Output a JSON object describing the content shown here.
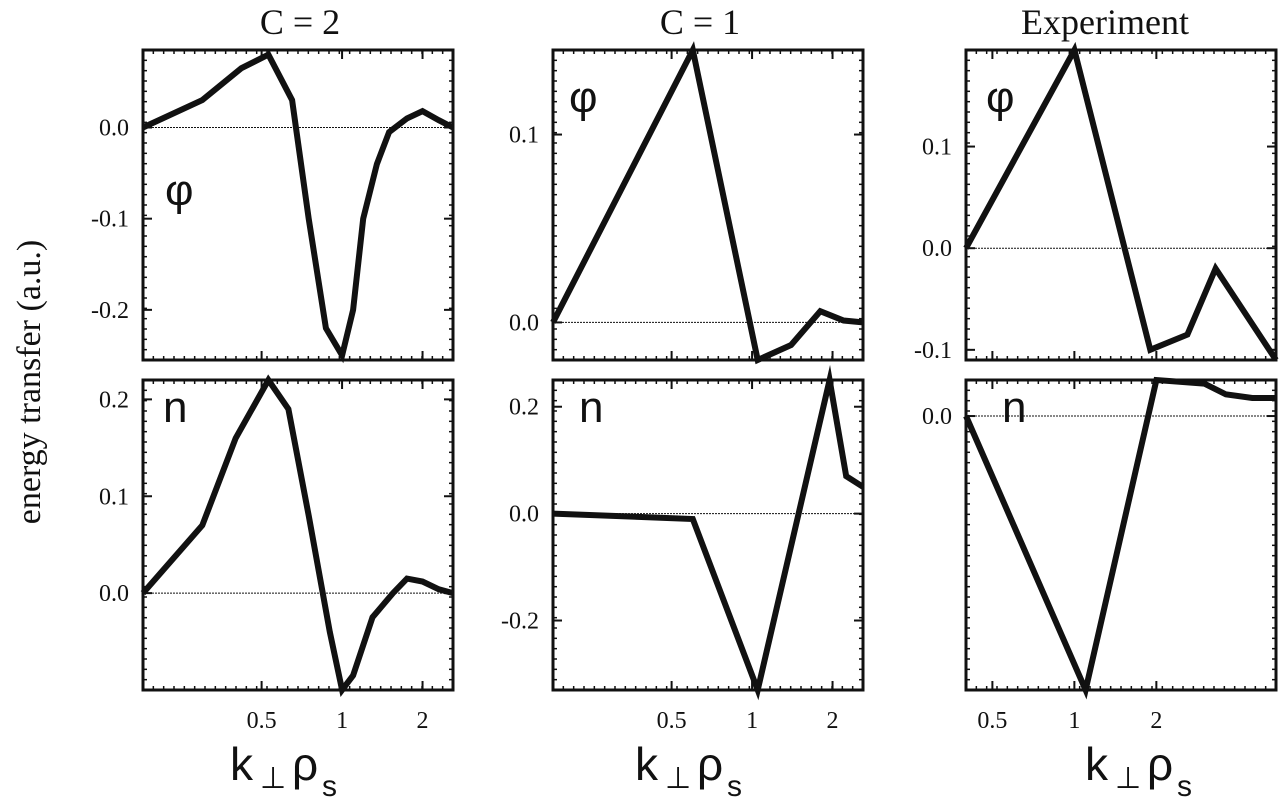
{
  "figure": {
    "ylabel": "energy transfer (a.u.)",
    "xlabel_main": "k",
    "xlabel_perp": "⊥",
    "xlabel_rho": "ρ",
    "xlabel_sub": "s",
    "columns": [
      "C = 2",
      "C = 1",
      "Experiment"
    ]
  },
  "chart_data": [
    {
      "type": "line",
      "title": "C = 2",
      "panel_label": "φ",
      "xlim": [
        0.18,
        2.6
      ],
      "xscale": "log",
      "ylim": [
        -0.255,
        0.085
      ],
      "yticks": [
        0.0,
        -0.1,
        -0.2
      ],
      "ytick_labels": [
        "0.0",
        "-0.1",
        "-0.2"
      ],
      "xticks": [
        0.5,
        1,
        2
      ],
      "xtick_labels": [],
      "series": [
        {
          "x": [
            0.18,
            0.3,
            0.42,
            0.53,
            0.65,
            0.75,
            0.87,
            1.0,
            1.1,
            1.2,
            1.35,
            1.5,
            1.75,
            2.0,
            2.3,
            2.6
          ],
          "y": [
            0.0,
            0.03,
            0.065,
            0.08,
            0.03,
            -0.1,
            -0.22,
            -0.25,
            -0.2,
            -0.1,
            -0.04,
            -0.005,
            0.01,
            0.018,
            0.008,
            0.0
          ]
        }
      ]
    },
    {
      "type": "line",
      "title": "C = 2",
      "panel_label": "n",
      "xlim": [
        0.18,
        2.6
      ],
      "xscale": "log",
      "ylim": [
        -0.1,
        0.22
      ],
      "yticks": [
        0.2,
        0.1,
        0.0
      ],
      "ytick_labels": [
        "0.2",
        "0.1",
        "0.0"
      ],
      "xticks": [
        0.5,
        1,
        2
      ],
      "xtick_labels": [
        "0.5",
        "1",
        "2"
      ],
      "series": [
        {
          "x": [
            0.18,
            0.3,
            0.4,
            0.53,
            0.63,
            0.75,
            0.9,
            1.0,
            1.1,
            1.3,
            1.55,
            1.75,
            2.0,
            2.3,
            2.6
          ],
          "y": [
            0.0,
            0.07,
            0.16,
            0.22,
            0.19,
            0.08,
            -0.04,
            -0.1,
            -0.085,
            -0.025,
            0.0,
            0.015,
            0.012,
            0.004,
            0.0
          ]
        }
      ]
    },
    {
      "type": "line",
      "title": "C = 1",
      "panel_label": "φ",
      "xlim": [
        0.18,
        2.6
      ],
      "xscale": "log",
      "ylim": [
        -0.02,
        0.145
      ],
      "yticks": [
        0.1,
        0.0
      ],
      "ytick_labels": [
        "0.1",
        "0.0"
      ],
      "xticks": [
        0.5,
        1,
        2
      ],
      "xtick_labels": [],
      "series": [
        {
          "x": [
            0.18,
            0.6,
            1.05,
            1.4,
            1.8,
            2.2,
            2.6
          ],
          "y": [
            0.0,
            0.145,
            -0.02,
            -0.012,
            0.006,
            0.001,
            0.0
          ]
        }
      ]
    },
    {
      "type": "line",
      "title": "C = 1",
      "panel_label": "n",
      "xlim": [
        0.18,
        2.6
      ],
      "xscale": "log",
      "ylim": [
        -0.33,
        0.25
      ],
      "yticks": [
        0.2,
        0.0,
        -0.2
      ],
      "ytick_labels": [
        "0.2",
        "0.0",
        "-0.2"
      ],
      "xticks": [
        0.5,
        1,
        2
      ],
      "xtick_labels": [
        "0.5",
        "1",
        "2"
      ],
      "series": [
        {
          "x": [
            0.18,
            0.6,
            1.05,
            1.95,
            2.25,
            2.6
          ],
          "y": [
            0.0,
            -0.01,
            -0.33,
            0.25,
            0.07,
            0.05
          ]
        }
      ]
    },
    {
      "type": "line",
      "title": "Experiment",
      "panel_label": "φ",
      "xlim": [
        0.4,
        5.5
      ],
      "xscale": "log",
      "ylim": [
        -0.11,
        0.195
      ],
      "yticks": [
        0.1,
        0.0,
        -0.1
      ],
      "ytick_labels": [
        "0.1",
        "0.0",
        "-0.1"
      ],
      "xticks": [
        0.5,
        1,
        2
      ],
      "xtick_labels": [],
      "series": [
        {
          "x": [
            0.4,
            1.0,
            1.9,
            2.6,
            3.3,
            5.5
          ],
          "y": [
            0.0,
            0.195,
            -0.1,
            -0.085,
            -0.02,
            -0.11
          ]
        }
      ]
    },
    {
      "type": "line",
      "title": "Experiment",
      "panel_label": "n",
      "xlim": [
        0.4,
        5.5
      ],
      "xscale": "log",
      "ylim": [
        -0.38,
        0.05
      ],
      "yticks": [
        0.0
      ],
      "ytick_labels": [
        "0.0"
      ],
      "xticks": [
        0.5,
        1,
        2
      ],
      "xtick_labels": [
        "0.5",
        "1",
        "2"
      ],
      "series": [
        {
          "x": [
            0.4,
            1.1,
            2.0,
            3.0,
            3.6,
            4.5,
            5.5
          ],
          "y": [
            0.0,
            -0.38,
            0.05,
            0.045,
            0.03,
            0.025,
            0.025
          ]
        }
      ]
    }
  ]
}
